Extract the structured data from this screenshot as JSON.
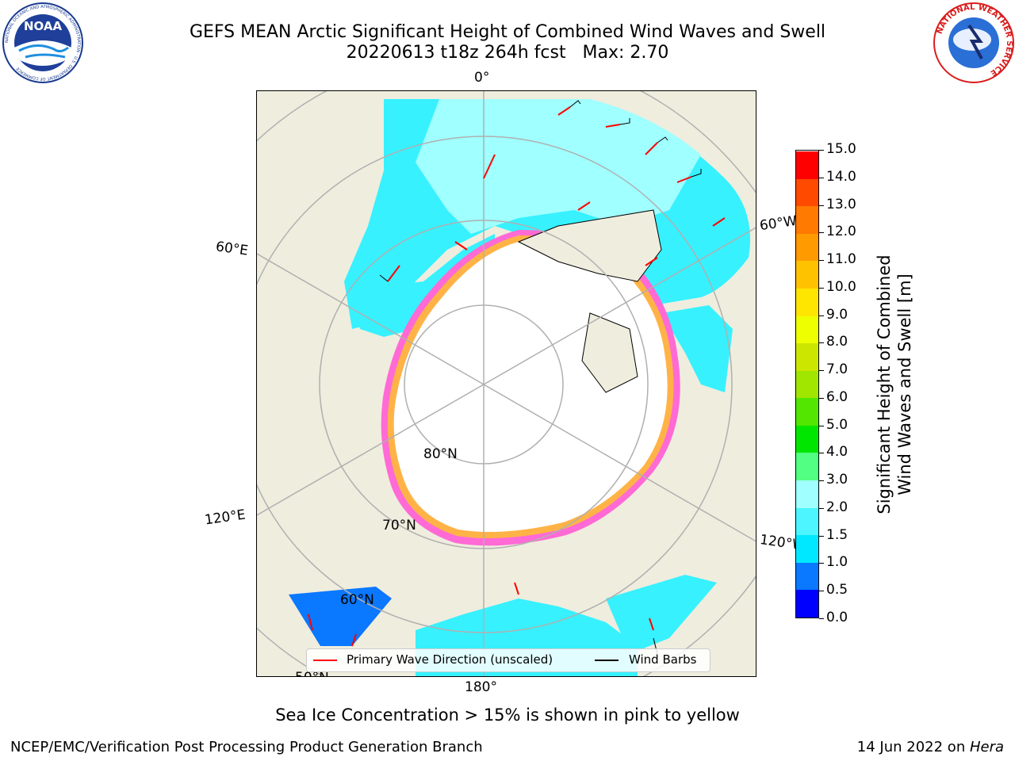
{
  "header": {
    "title_line1": "GEFS MEAN Arctic Significant Height of Combined Wind Waves and Swell",
    "title_line2": "20220613 t18z 264h fcst   Max: 2.70"
  },
  "logos": {
    "noaa_text": "NOAA",
    "noaa_ring_text": "NATIONAL OCEANIC AND ATMOSPHERIC ADMINISTRATION · U.S. DEPARTMENT OF COMMERCE",
    "nws_ring_text": "NATIONAL WEATHER SERVICE"
  },
  "map": {
    "longitude_labels": {
      "top": "0°",
      "bottom": "180°",
      "left_upper": "60°E",
      "left_lower": "120°E",
      "right_upper": "60°W",
      "right_lower": "120°W"
    },
    "latitude_labels": {
      "lat80": "80°N",
      "lat70": "70°N",
      "lat60": "60°N",
      "lat50": "50°N"
    },
    "colors": {
      "land": "#efedde",
      "ice": "#ffffff",
      "ice_edge_pink": "#ff6ad5",
      "ice_edge_orange": "#ffb347",
      "graticule": "#b0b0b0",
      "wave_arrow": "#ff0000",
      "wind_barb": "#000000"
    }
  },
  "legend": {
    "primary_wave": "Primary Wave Direction (unscaled)",
    "wind_barbs": "Wind Barbs"
  },
  "colorbar": {
    "label_line1": "Significant Height of Combined",
    "label_line2": "Wind Waves and Swell [m]",
    "ticks": [
      "0.0",
      "0.5",
      "1.0",
      "1.5",
      "2.0",
      "3.0",
      "4.0",
      "5.0",
      "6.0",
      "7.0",
      "8.0",
      "9.0",
      "10.0",
      "11.0",
      "12.0",
      "13.0",
      "14.0",
      "15.0"
    ],
    "colors": [
      "#0000ff",
      "#0a78ff",
      "#00e8ff",
      "#4cf5ff",
      "#a0ffff",
      "#52ff82",
      "#00e600",
      "#52e600",
      "#a0e600",
      "#cce600",
      "#eeff00",
      "#ffe600",
      "#ffc200",
      "#ff9a00",
      "#ff7a00",
      "#ff4a00",
      "#ff0000"
    ]
  },
  "footer": {
    "note": "Sea Ice Concentration > 15% is shown in pink to yellow",
    "left": "NCEP/EMC/Verification Post Processing Product Generation Branch",
    "right_date": "14 Jun 2022 on ",
    "right_host": "Hera"
  }
}
